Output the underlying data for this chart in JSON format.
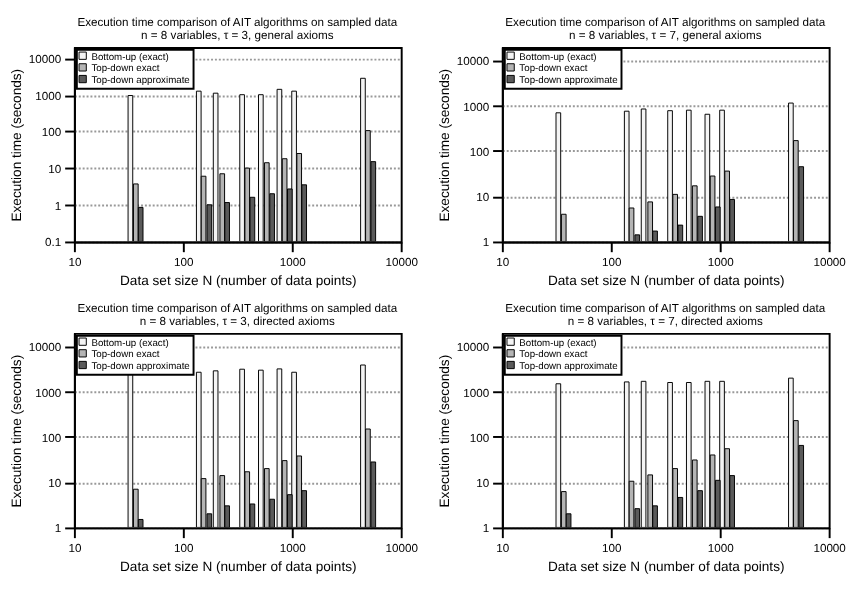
{
  "chart_data": [
    {
      "type": "bar",
      "title": "Execution time comparison of AIT algorithms on sampled data",
      "subtitle": "n = 8 variables, τ = 3, general axioms",
      "xlabel": "Data set size N  (number of data points)",
      "ylabel": "Execution time (seconds)",
      "log": "xy",
      "grid": "y",
      "legend": "top left",
      "xlim": [
        10,
        10000
      ],
      "xticks": [
        10,
        100,
        1000,
        10000
      ],
      "ylim": [
        0.1,
        20000
      ],
      "yticks": [
        0.1,
        1,
        10,
        100,
        1000,
        10000
      ],
      "series": [
        {
          "name": "Bottom-up (exact)",
          "color": "#f4f4f4",
          "x": [
            33,
            140,
            200,
            350,
            520,
            770,
            1050,
            4500
          ],
          "values": [
            950,
            1250,
            1100,
            1000,
            1000,
            1400,
            1250,
            2800
          ]
        },
        {
          "name": "Top-down exact",
          "color": "#b4b4b4",
          "x": [
            37,
            155,
            230,
            390,
            590,
            860,
            1170,
            5000
          ],
          "values": [
            3.7,
            6,
            7,
            10,
            14,
            18,
            25,
            105
          ]
        },
        {
          "name": "Top-down approximate",
          "color": "#5a5a5a",
          "x": [
            41,
            175,
            255,
            435,
            660,
            960,
            1300,
            5600
          ],
          "values": [
            0.85,
            1.0,
            1.15,
            1.6,
            2.0,
            2.7,
            3.5,
            15
          ]
        }
      ]
    },
    {
      "type": "bar",
      "title": "Execution time comparison of AIT algorithms on sampled data",
      "subtitle": "n = 8 variables, τ = 7, general axioms",
      "xlabel": "Data set size N  (number of data points)",
      "ylabel": "Execution time (seconds)",
      "log": "xy",
      "grid": "y",
      "legend": "top left",
      "xlim": [
        10,
        10000
      ],
      "xticks": [
        10,
        100,
        1000,
        10000
      ],
      "ylim": [
        1,
        20000
      ],
      "yticks": [
        1,
        10,
        100,
        1000,
        10000
      ],
      "series": [
        {
          "name": "Bottom-up (exact)",
          "color": "#f4f4f4",
          "x": [
            33,
            140,
            200,
            350,
            520,
            770,
            1050,
            4500
          ],
          "values": [
            700,
            760,
            850,
            780,
            800,
            650,
            800,
            1150
          ]
        },
        {
          "name": "Top-down exact",
          "color": "#b4b4b4",
          "x": [
            37,
            155,
            230,
            390,
            590,
            860,
            1170,
            5000
          ],
          "values": [
            4,
            5.5,
            7.5,
            11,
            17,
            28,
            36,
            170
          ]
        },
        {
          "name": "Top-down approximate",
          "color": "#5a5a5a",
          "x": [
            null,
            175,
            255,
            435,
            660,
            960,
            1300,
            5600
          ],
          "values": [
            null,
            1.4,
            1.7,
            2.3,
            3.6,
            5.8,
            8.5,
            45
          ]
        }
      ]
    },
    {
      "type": "bar",
      "title": "Execution time comparison of AIT algorithms on sampled data",
      "subtitle": "n = 8 variables, τ = 3, directed axioms",
      "xlabel": "Data set size N  (number of data points)",
      "ylabel": "Execution time (seconds)",
      "log": "xy",
      "grid": "y",
      "legend": "top left",
      "xlim": [
        10,
        10000
      ],
      "xticks": [
        10,
        100,
        1000,
        10000
      ],
      "ylim": [
        1,
        20000
      ],
      "yticks": [
        1,
        10,
        100,
        1000,
        10000
      ],
      "series": [
        {
          "name": "Bottom-up (exact)",
          "color": "#f4f4f4",
          "x": [
            33,
            140,
            200,
            350,
            520,
            770,
            1050,
            4500
          ],
          "values": [
            2400,
            2700,
            2900,
            3150,
            3000,
            3200,
            2700,
            3900
          ]
        },
        {
          "name": "Top-down exact",
          "color": "#b4b4b4",
          "x": [
            37,
            155,
            230,
            390,
            590,
            860,
            1170,
            5000
          ],
          "values": [
            7,
            12,
            14,
            17,
            20,
            30,
            38,
            150
          ]
        },
        {
          "name": "Top-down approximate",
          "color": "#5a5a5a",
          "x": [
            41,
            175,
            255,
            435,
            660,
            960,
            1300,
            5600
          ],
          "values": [
            1.5,
            2.0,
            3.0,
            3.3,
            4.2,
            5.3,
            6.5,
            28
          ]
        }
      ]
    },
    {
      "type": "bar",
      "title": "Execution time comparison of AIT algorithms on sampled data",
      "subtitle": "n = 8 variables, τ = 7, directed axioms",
      "xlabel": "Data set size N  (number of data points)",
      "ylabel": "Execution time (seconds)",
      "log": "xy",
      "grid": "y",
      "legend": "top left",
      "xlim": [
        10,
        10000
      ],
      "xticks": [
        10,
        100,
        1000,
        10000
      ],
      "ylim": [
        1,
        20000
      ],
      "yticks": [
        1,
        10,
        100,
        1000,
        10000
      ],
      "series": [
        {
          "name": "Bottom-up (exact)",
          "color": "#f4f4f4",
          "x": [
            33,
            140,
            200,
            350,
            520,
            770,
            1050,
            4500
          ],
          "values": [
            1500,
            1650,
            1700,
            1600,
            1600,
            1700,
            1700,
            2000
          ]
        },
        {
          "name": "Top-down exact",
          "color": "#b4b4b4",
          "x": [
            37,
            155,
            230,
            390,
            590,
            860,
            1170,
            5000
          ],
          "values": [
            6.2,
            10.5,
            14.5,
            20,
            31,
            40,
            55,
            230
          ]
        },
        {
          "name": "Top-down approximate",
          "color": "#5a5a5a",
          "x": [
            41,
            175,
            255,
            435,
            660,
            960,
            1300,
            5600
          ],
          "values": [
            2.0,
            2.6,
            3.0,
            4.6,
            6.5,
            11,
            14,
            65
          ]
        }
      ]
    }
  ]
}
